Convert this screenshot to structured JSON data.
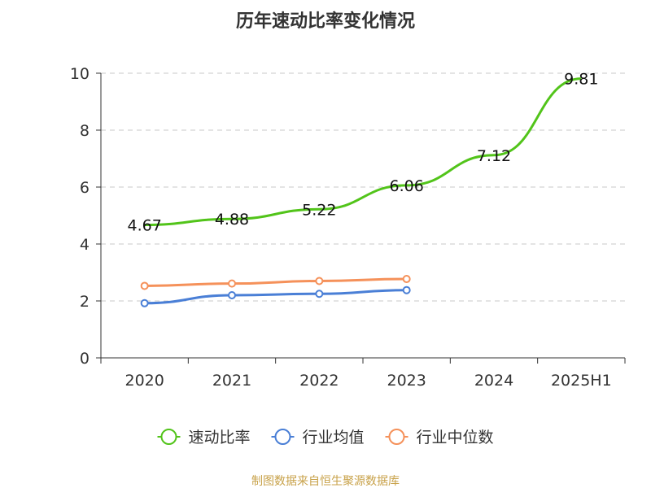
{
  "chart_data": {
    "type": "line",
    "title": "历年速动比率变化情况",
    "categories": [
      "2020",
      "2021",
      "2022",
      "2023",
      "2024",
      "2025H1"
    ],
    "ylim": [
      0,
      10
    ],
    "yticks": [
      0,
      2,
      4,
      6,
      8,
      10
    ],
    "grid": true,
    "legend_position": "bottom",
    "series": [
      {
        "name": "速动比率",
        "color": "#52c41a",
        "values": [
          4.67,
          4.88,
          5.22,
          6.06,
          7.12,
          9.81
        ],
        "data_labels": [
          "4.67",
          "4.88",
          "5.22",
          "6.06",
          "7.12",
          "9.81"
        ]
      },
      {
        "name": "行业均值",
        "color": "#4a7fd6",
        "values": [
          1.92,
          2.2,
          2.25,
          2.38,
          null,
          null
        ]
      },
      {
        "name": "行业中位数",
        "color": "#f5915a",
        "values": [
          2.53,
          2.61,
          2.7,
          2.77,
          null,
          null
        ]
      }
    ]
  },
  "source": "制图数据来自恒生聚源数据库"
}
